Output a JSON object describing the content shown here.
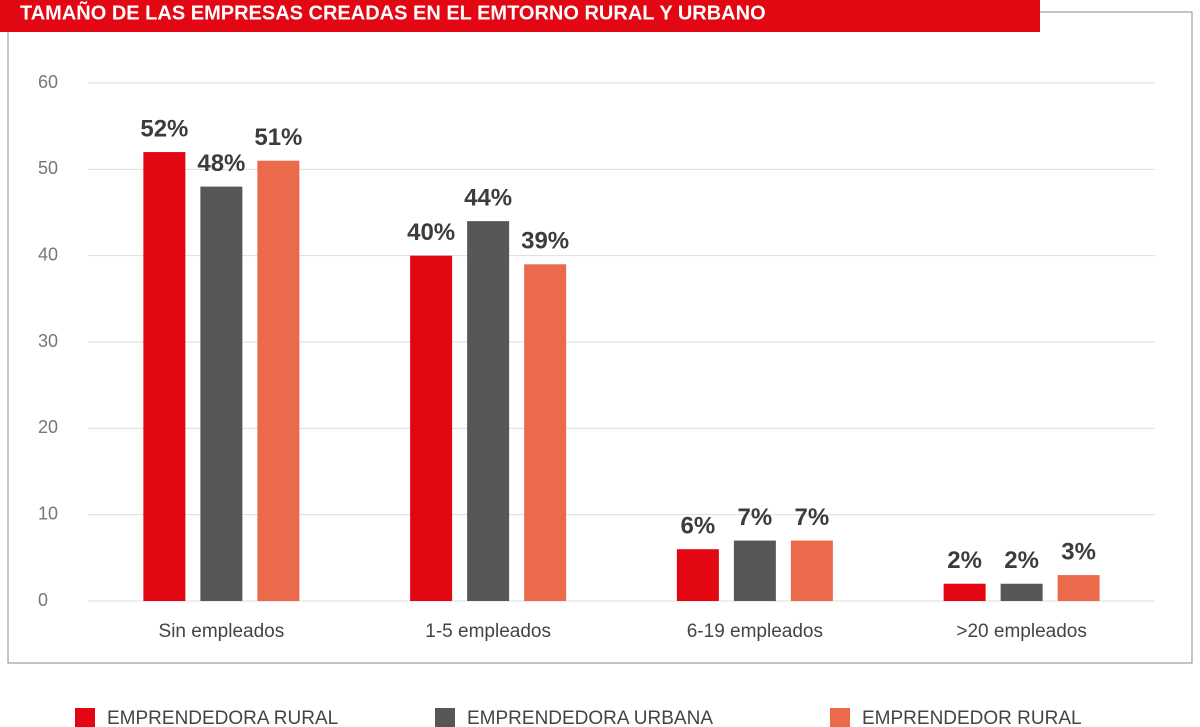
{
  "chart_data": {
    "type": "bar",
    "title": "TAMAÑO DE LAS EMPRESAS CREADAS EN EL EMTORNO RURAL Y URBANO",
    "categories": [
      "Sin empleados",
      "1-5 empleados",
      "6-19 empleados",
      ">20 empleados"
    ],
    "series": [
      {
        "name": "EMPRENDEDORA RURAL",
        "color": "#e30613",
        "values": [
          52,
          40,
          6,
          2
        ],
        "value_labels": [
          "52%",
          "40%",
          "6%",
          "2%"
        ]
      },
      {
        "name": "EMPRENDEDORA URBANA",
        "color": "#575756",
        "values": [
          48,
          44,
          7,
          2
        ],
        "value_labels": [
          "48%",
          "44%",
          "7%",
          "2%"
        ]
      },
      {
        "name": "EMPRENDEDOR RURAL",
        "color": "#ec6a4c",
        "values": [
          51,
          39,
          7,
          3
        ],
        "value_labels": [
          "51%",
          "39%",
          "7%",
          "3%"
        ]
      }
    ],
    "ylim": [
      0,
      60
    ],
    "yticks": [
      0,
      10,
      20,
      30,
      40,
      50,
      60
    ],
    "grid": true,
    "legend": "bottom"
  }
}
